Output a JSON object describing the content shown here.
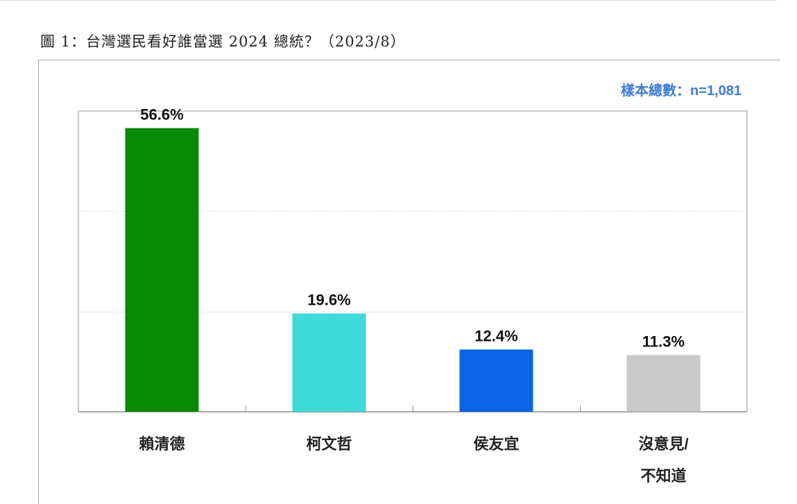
{
  "figure_title": "圖 1：台灣選民看好誰當選 2024 總統？（2023/8）",
  "sample_size_label": "樣本總數：n=1,081",
  "chart_data": {
    "type": "bar",
    "title": "圖 1：台灣選民看好誰當選 2024 總統？（2023/8）",
    "categories": [
      "賴清德",
      "柯文哲",
      "侯友宜",
      "沒意見/\n不知道"
    ],
    "values": [
      56.6,
      19.6,
      12.4,
      11.3
    ],
    "data_labels": [
      "56.6%",
      "19.6%",
      "12.4%",
      "11.3%"
    ],
    "colors": [
      "#088a08",
      "#3ed9d9",
      "#0a64e8",
      "#c9c9c9"
    ],
    "xlabel": "",
    "ylabel": "",
    "ylim": [
      0,
      60
    ],
    "grid": true,
    "legend": "none"
  }
}
